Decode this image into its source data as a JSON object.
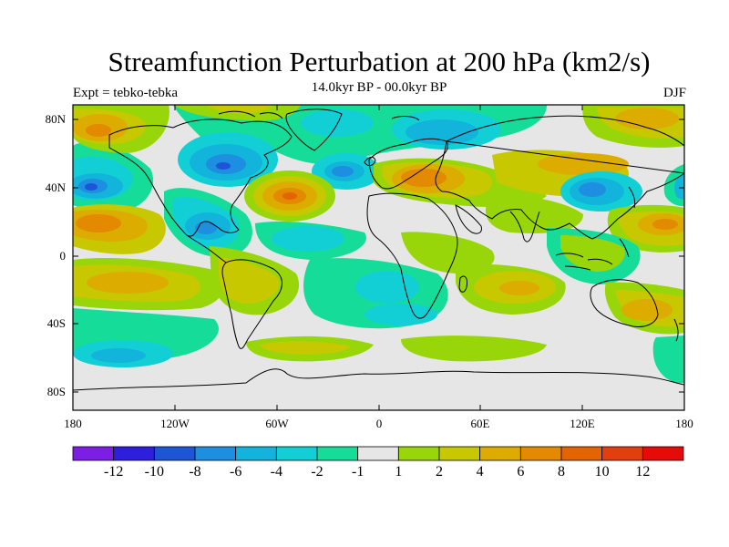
{
  "title": "Streamfunction Perturbation at 200 hPa (km2/s)",
  "subtitle": "14.0kyr BP - 00.0kyr BP",
  "left_label": "Expt = tebko-tebka",
  "right_label": "DJF",
  "y_ticks": [
    "80N",
    "40N",
    "0",
    "40S",
    "80S"
  ],
  "x_ticks": [
    "180",
    "120W",
    "60W",
    "0",
    "60E",
    "120E",
    "180"
  ],
  "colorbar": {
    "colors": [
      "#7d1ee6",
      "#2e1ede",
      "#1e55d6",
      "#1e8ee0",
      "#12b4dc",
      "#12cfd6",
      "#16dc9a",
      "#e6e6e6",
      "#98d60a",
      "#c8c800",
      "#dcac00",
      "#e48a00",
      "#e46400",
      "#e23e10",
      "#e60a0a"
    ],
    "labels": [
      "-12",
      "-10",
      "-8",
      "-6",
      "-4",
      "-2",
      "-1",
      "1",
      "2",
      "4",
      "6",
      "8",
      "10",
      "12"
    ]
  },
  "map_colors": {
    "background": "#e6e6e6",
    "ocean_fill": "#e6e6e6",
    "coastline": "#000000"
  }
}
